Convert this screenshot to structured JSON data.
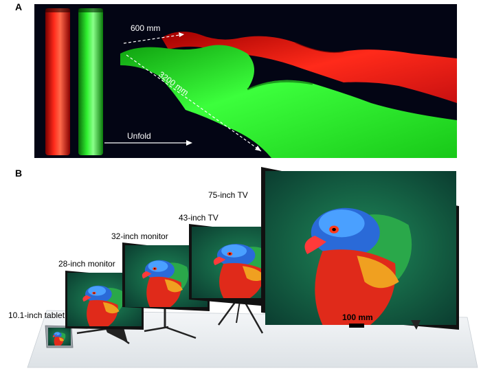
{
  "panel_a": {
    "letter": "A",
    "width_label": "600 mm",
    "length_label": "3200 mm",
    "unfold_label": "Unfold",
    "colors": {
      "red": "#e01010",
      "green": "#22e622",
      "background": "#030514"
    }
  },
  "panel_b": {
    "letter": "B",
    "devices": [
      {
        "label": "10.1-inch tablet"
      },
      {
        "label": "28-inch monitor"
      },
      {
        "label": "32-inch monitor"
      },
      {
        "label": "43-inch TV"
      },
      {
        "label": "75-inch TV"
      }
    ],
    "scale_label": "100 mm"
  }
}
